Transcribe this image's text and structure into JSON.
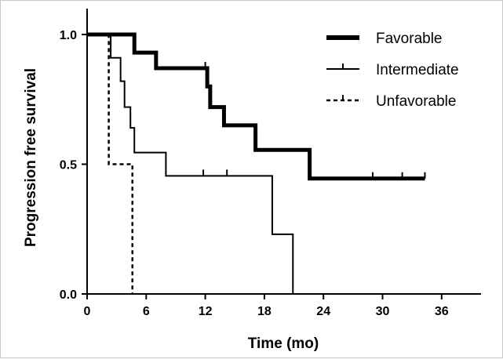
{
  "chart_data": {
    "type": "line",
    "subtype": "kaplan-meier step curve",
    "title": "",
    "xlabel": "Time (mo)",
    "ylabel": "Progression free survival",
    "xlim": [
      0,
      40
    ],
    "ylim": [
      0,
      1.0
    ],
    "x_ticks": [
      "0",
      "6",
      "12",
      "18",
      "24",
      "30",
      "36"
    ],
    "y_ticks": [
      "0.0",
      "0.5",
      "1.0"
    ],
    "grid": false,
    "legend_position": "top-right",
    "series": [
      {
        "name": "Favorable",
        "style": "thick-solid",
        "color": "#000000",
        "steps": [
          [
            0,
            1.0
          ],
          [
            4.8,
            0.93
          ],
          [
            7.0,
            0.87
          ],
          [
            12.2,
            0.8
          ],
          [
            12.5,
            0.72
          ],
          [
            13.9,
            0.65
          ],
          [
            17.1,
            0.555
          ],
          [
            22.6,
            0.445
          ]
        ],
        "end_x": 34.3,
        "censored_x": [
          12.0,
          29.0,
          32.0,
          34.3
        ]
      },
      {
        "name": "Intermediate",
        "style": "thin-solid",
        "color": "#000000",
        "steps": [
          [
            0,
            1.0
          ],
          [
            2.4,
            0.91
          ],
          [
            3.4,
            0.82
          ],
          [
            3.8,
            0.72
          ],
          [
            4.4,
            0.64
          ],
          [
            4.8,
            0.545
          ],
          [
            8.0,
            0.455
          ],
          [
            18.8,
            0.23
          ],
          [
            20.9,
            0.0
          ]
        ],
        "end_x": 20.9,
        "censored_x": [
          11.8,
          14.2
        ]
      },
      {
        "name": "Unfavorable",
        "style": "dashed",
        "color": "#000000",
        "steps": [
          [
            0,
            1.0
          ],
          [
            2.2,
            0.5
          ],
          [
            4.6,
            0.0
          ]
        ],
        "end_x": 4.6,
        "censored_x": []
      }
    ]
  }
}
